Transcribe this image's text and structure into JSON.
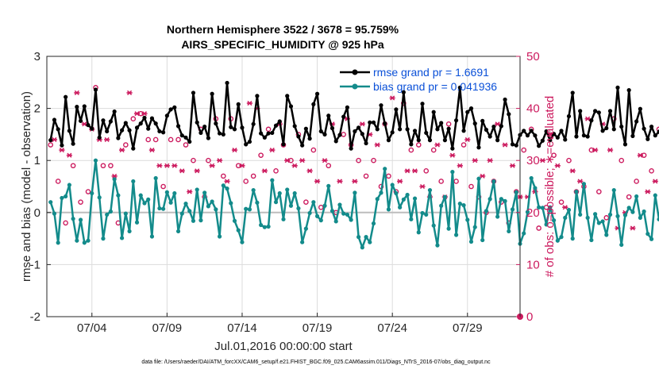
{
  "chart_data": {
    "type": "line",
    "title_line1": "Northern Hemisphere 3522 / 3678 = 95.759%",
    "title_line2": "AIRS_SPECIFIC_HUMIDITY @ 925 hPa",
    "ylabel": "rmse and bias (model - observation)",
    "y2label": "# of obs: o=possible; ∗=evaluated",
    "xlabel": "Jul.01,2016 00:00:00 start",
    "ylim": [
      -2,
      3
    ],
    "y2lim": [
      0,
      50
    ],
    "xlim": [
      0,
      31.5
    ],
    "yticks": [
      "-2",
      "-1",
      "0",
      "1",
      "2",
      "3"
    ],
    "y2ticks": [
      "0",
      "10",
      "20",
      "30",
      "40",
      "50"
    ],
    "xticks": [
      {
        "pos": 3.0,
        "label": "07/04"
      },
      {
        "pos": 8.0,
        "label": "07/09"
      },
      {
        "pos": 13.0,
        "label": "07/14"
      },
      {
        "pos": 18.0,
        "label": "07/19"
      },
      {
        "pos": 23.0,
        "label": "07/24"
      },
      {
        "pos": 28.0,
        "label": "07/29"
      }
    ],
    "legend_rmse": "rmse grand pr = 1.6691",
    "legend_bias": "bias grand pr = 0.041936",
    "series": [
      {
        "name": "rmse",
        "color": "#000000",
        "values": [
          1.39,
          1.78,
          1.6,
          1.29,
          2.22,
          1.57,
          1.32,
          2.03,
          1.76,
          2.04,
          1.68,
          1.61,
          2.36,
          1.44,
          1.77,
          1.56,
          1.75,
          1.94,
          1.43,
          1.58,
          1.72,
          1.58,
          1.23,
          1.63,
          1.71,
          1.82,
          1.61,
          1.81,
          1.71,
          1.56,
          1.54,
          1.86,
          1.98,
          2.02,
          1.66,
          1.48,
          1.44,
          1.36,
          2.3,
          1.73,
          1.53,
          1.65,
          1.43,
          2.28,
          1.71,
          1.52,
          1.5,
          2.49,
          1.64,
          1.6,
          2.08,
          1.63,
          1.31,
          1.36,
          1.7,
          2.24,
          1.52,
          1.44,
          1.52,
          1.53,
          1.67,
          1.75,
          1.31,
          2.24,
          2.04,
          1.66,
          1.46,
          1.29,
          1.61,
          1.42,
          2.08,
          2.28,
          1.56,
          1.5,
          1.86,
          1.62,
          1.37,
          1.49,
          1.84,
          2.02,
          1.23,
          1.56,
          1.63,
          1.51,
          1.33,
          1.73,
          1.73,
          1.6,
          2.06,
          1.71,
          1.39,
          1.54,
          1.98,
          1.6,
          2.31,
          1.6,
          1.31,
          1.57,
          1.39,
          2.09,
          1.53,
          1.39,
          1.93,
          1.6,
          1.72,
          1.39,
          1.61,
          1.23,
          1.77,
          2.4,
          1.57,
          1.93,
          2.0,
          1.71,
          1.25,
          1.76,
          1.59,
          1.46,
          1.65,
          1.39,
          1.66,
          2.17,
          1.89,
          1.31,
          1.29,
          1.49,
          1.57,
          1.48,
          1.57,
          1.48,
          1.28,
          1.38,
          1.56,
          1.39,
          1.51,
          1.44,
          1.57,
          1.4,
          1.85,
          2.3,
          1.46,
          1.95,
          1.48,
          1.46,
          1.77,
          1.95,
          1.92,
          1.57,
          1.62,
          1.95,
          1.6,
          2.4,
          1.65,
          1.31,
          2.35,
          1.47,
          1.75,
          1.99,
          1.61,
          1.41,
          1.65,
          1.48,
          1.55,
          1.76,
          1.77,
          1.58,
          1.62,
          2.13,
          1.37,
          1.32,
          1.54,
          1.69,
          1.36,
          1.92,
          1.54,
          1.98,
          1.41,
          1.82,
          2.02,
          2.05,
          1.89,
          1.78,
          1.96,
          1.44,
          1.83,
          1.39,
          1.5,
          1.67,
          1.57,
          2.24,
          1.39,
          1.38,
          1.8,
          1.73,
          1.61,
          1.53,
          1.56,
          1.91,
          1.94,
          2.06,
          1.74,
          1.92,
          1.56,
          1.79,
          1.65,
          1.68,
          1.35,
          1.67,
          2.03,
          1.83,
          1.63,
          1.83,
          1.45,
          1.3,
          1.83,
          1.92,
          1.73,
          1.6,
          1.56,
          1.7,
          1.92,
          1.72,
          1.7,
          1.53,
          1.46,
          1.67,
          1.59,
          1.77,
          1.77,
          1.56,
          1.81,
          1.55,
          1.81,
          1.53,
          1.9,
          2.05,
          1.85,
          1.99,
          1.61,
          1.66,
          1.5,
          1.63,
          1.8,
          1.59,
          2.08,
          1.56,
          1.78,
          1.32,
          1.8,
          1.63,
          1.55,
          1.77,
          1.62,
          1.5,
          1.45,
          1.35,
          1.7,
          1.66,
          1.37,
          1.57,
          1.66,
          1.55,
          1.56,
          1.92,
          1.63,
          1.52,
          1.76,
          1.69,
          1.57,
          1.38
        ]
      },
      {
        "name": "bias",
        "color": "#138b8b",
        "values": [
          0.2,
          -0.02,
          -0.58,
          0.28,
          0.31,
          0.53,
          -0.12,
          -0.54,
          -0.14,
          -0.58,
          -0.54,
          0.37,
          1.0,
          0.29,
          -0.5,
          -0.04,
          0.02,
          0.64,
          0.33,
          -0.49,
          -0.02,
          -0.36,
          0.6,
          -0.19,
          0.33,
          0.18,
          0.25,
          -0.46,
          0.66,
          0.08,
          0.07,
          0.39,
          0.19,
          0.37,
          -0.36,
          -0.02,
          0.17,
          0.03,
          -0.16,
          0.44,
          -0.15,
          0.38,
          0.12,
          0.21,
          0.06,
          -0.46,
          0.52,
          0.46,
          0.18,
          -0.16,
          -0.34,
          -0.57,
          0.07,
          0.06,
          0.43,
          0.19,
          -0.24,
          -0.28,
          -0.27,
          0.62,
          0.2,
          0.37,
          -0.13,
          0.44,
          0.13,
          0.37,
          0.08,
          -0.57,
          -0.31,
          -0.01,
          0.2,
          -0.07,
          -0.15,
          0.13,
          0.51,
          0.03,
          -0.17,
          0.15,
          -0.02,
          -0.04,
          -0.14,
          0.38,
          -0.47,
          -0.67,
          -0.47,
          -0.57,
          -0.21,
          0.26,
          0.38,
          0.84,
          0.06,
          0.53,
          0.37,
          0.1,
          0.25,
          0.34,
          -0.13,
          0.27,
          -0.38,
          -0.01,
          -0.04,
          0.43,
          -0.25,
          -0.63,
          0.13,
          0.3,
          -0.31,
          0.78,
          -0.43,
          0.17,
          0.14,
          -0.14,
          -0.56,
          -0.28,
          0.65,
          -0.53,
          0.03,
          0.26,
          0.6,
          -0.08,
          0.26,
          0.22,
          -0.36,
          0.06,
          0.39,
          -0.6,
          -0.4,
          0.01,
          0.66,
          0.47,
          0.1,
          0.09,
          -0.23,
          0.1,
          -0.15,
          -0.54,
          -0.47,
          -0.1,
          0.05,
          -0.5,
          0.4,
          -0.04,
          0.55,
          -0.1,
          -0.53,
          -0.03,
          -0.2,
          -0.17,
          -0.43,
          -0.04,
          0.43,
          -0.07,
          -0.62,
          -0.05,
          0.09,
          0.01,
          0.31,
          -0.1,
          0.02,
          -0.41,
          -0.51,
          0.33,
          -0.13,
          0.4,
          -0.19,
          0.58,
          0.02,
          -0.7,
          -0.27,
          -0.29,
          -0.03,
          0.39,
          0.07,
          -0.37,
          0.28,
          0.26,
          0.63,
          -0.4,
          -0.38,
          0.5,
          -0.31,
          0.08,
          -0.28,
          0.57,
          -0.45,
          0.3,
          -0.29,
          0.2,
          0.4,
          -0.16,
          0.1,
          0.21,
          0.05,
          0.37,
          0.81,
          -0.07,
          0.31,
          -0.13,
          0.1,
          0.57,
          0.47,
          0.32,
          0.63,
          0.47,
          0.33,
          0.32,
          0.14,
          0.15,
          0.59,
          0.31,
          0.33,
          0.15,
          0.16,
          0.27,
          0.08,
          0.4,
          0.29,
          0.09,
          0.05,
          0.34,
          0.04,
          0.27,
          0.09,
          -0.05,
          0.1,
          0.31,
          0.42,
          0.54,
          0.48,
          0.12,
          0.02,
          0.59,
          -0.15,
          0.23,
          0.09,
          0.24,
          -0.01,
          0.16,
          -0.26,
          0.11,
          0.25,
          0.0,
          0.43,
          -0.17,
          0.07,
          0.2,
          0.04,
          0.06,
          -0.07,
          0.34,
          0.27,
          0.47,
          0.24,
          0.21,
          0.15,
          -0.21,
          0.05,
          0.63,
          0.23,
          0.71,
          -0.2,
          0.1,
          -0.35,
          -0.11,
          0.18,
          -0.27,
          0.46,
          0.07,
          0.14,
          0.57,
          0.65,
          -0.29,
          0.54
        ]
      },
      {
        "name": "possible",
        "color": "#cc1a5e",
        "marker": "circle",
        "values": [
          33,
          35,
          26,
          32,
          18,
          32,
          29,
          44,
          22,
          38,
          24,
          36,
          44,
          34,
          29,
          34,
          29,
          27,
          18,
          32,
          33,
          44,
          38,
          40,
          39,
          40,
          34,
          32,
          34,
          29,
          25,
          30,
          34,
          29,
          34,
          29,
          33,
          24,
          30,
          29,
          36,
          24,
          30,
          29,
          38,
          30,
          27,
          27,
          38,
          32,
          29,
          30,
          26,
          41,
          27,
          40,
          31,
          28,
          36,
          33,
          28,
          38,
          33,
          30,
          30,
          29,
          35,
          30,
          22,
          29,
          32,
          27,
          21,
          30,
          29,
          38,
          20,
          26,
          35,
          39,
          33,
          27,
          30,
          37,
          27,
          35,
          30,
          34,
          25,
          38,
          27,
          42,
          24,
          26,
          41,
          28,
          32,
          28,
          33,
          25,
          28,
          24,
          32,
          33,
          26,
          23,
          37,
          32,
          26,
          30,
          33,
          35,
          25,
          31,
          23,
          27,
          20,
          30,
          26,
          37,
          22,
          33,
          18,
          29,
          24,
          23,
          32,
          24,
          36,
          25,
          17,
          30,
          21,
          35,
          31,
          30,
          22,
          21,
          30,
          28,
          24,
          27,
          25,
          38,
          32,
          33,
          24,
          38,
          19,
          33,
          38,
          17,
          30,
          21,
          23,
          17,
          26,
          32,
          31,
          24,
          28,
          27,
          36,
          31,
          29,
          30,
          22,
          21,
          40,
          33,
          30,
          25,
          33,
          28,
          36,
          41,
          33,
          33,
          30,
          30,
          33,
          33,
          32,
          28,
          33,
          38,
          24,
          30,
          28,
          32,
          38,
          36,
          33,
          24,
          30,
          17,
          25,
          25,
          24,
          30,
          27,
          31,
          32,
          21,
          37,
          27,
          40,
          30,
          33,
          35,
          20,
          32,
          24,
          26,
          19,
          29,
          22,
          33,
          36,
          25,
          31,
          22,
          32,
          29,
          27,
          39,
          30,
          31,
          38,
          30,
          29,
          24,
          35,
          31,
          25,
          28,
          29,
          24,
          25,
          33,
          37,
          19,
          34,
          28,
          18,
          32,
          26,
          32,
          31,
          34,
          30,
          28,
          24,
          33,
          37,
          30,
          37,
          35,
          37,
          38,
          32,
          38,
          33,
          35,
          33,
          39,
          31,
          37,
          34,
          36,
          32,
          23,
          31,
          36,
          35,
          30,
          33,
          25,
          22,
          37,
          31,
          20,
          24,
          37,
          31,
          36,
          32,
          32,
          31,
          36,
          32,
          35,
          33,
          22
        ]
      },
      {
        "name": "evaluated",
        "color": "#cc1a5e",
        "marker": "asterisk",
        "values": [
          31,
          34,
          25,
          32,
          17,
          31,
          29,
          43,
          21,
          37,
          23,
          36,
          43,
          34,
          29,
          34,
          29,
          27,
          18,
          32,
          32,
          43,
          37,
          39,
          38,
          39,
          34,
          32,
          33,
          29,
          24,
          29,
          34,
          29,
          33,
          28,
          33,
          24,
          30,
          28,
          36,
          23,
          30,
          29,
          37,
          30,
          26,
          26,
          37,
          32,
          28,
          29,
          26,
          41,
          26,
          40,
          30,
          28,
          35,
          32,
          27,
          37,
          33,
          30,
          30,
          29,
          34,
          30,
          22,
          28,
          31,
          26,
          21,
          30,
          28,
          37,
          19,
          26,
          34,
          38,
          33,
          26,
          30,
          37,
          26,
          35,
          29,
          33,
          25,
          37,
          27,
          42,
          24,
          26,
          40,
          28,
          32,
          28,
          33,
          25,
          28,
          23,
          32,
          33,
          26,
          23,
          36,
          31,
          25,
          29,
          32,
          34,
          24,
          30,
          22,
          27,
          19,
          30,
          25,
          37,
          22,
          33,
          18,
          29,
          24,
          23,
          32,
          23,
          36,
          24,
          17,
          30,
          20,
          35,
          31,
          29,
          21,
          21,
          29,
          28,
          23,
          26,
          25,
          38,
          32,
          32,
          24,
          37,
          19,
          32,
          38,
          17,
          29,
          20,
          23,
          17,
          25,
          31,
          30,
          24,
          28,
          26,
          35,
          31,
          28,
          30,
          21,
          21,
          40,
          32,
          29,
          24,
          32,
          28,
          36,
          40,
          32,
          33,
          29,
          30,
          33,
          33,
          31,
          28,
          32,
          38,
          23,
          30,
          28,
          32,
          38,
          36,
          33,
          24,
          30,
          17,
          25,
          24,
          23,
          30,
          27,
          31,
          31,
          21,
          36,
          26,
          39,
          30,
          33,
          35,
          20,
          32,
          23,
          25,
          19,
          29,
          21,
          33,
          36,
          25,
          30,
          21,
          32,
          28,
          26,
          39,
          30,
          31,
          37,
          29,
          29,
          24,
          35,
          30,
          25,
          27,
          29,
          24,
          25,
          32,
          37,
          19,
          34,
          27,
          17,
          32,
          26,
          31,
          31,
          34,
          30,
          27,
          23,
          33,
          37,
          30,
          37,
          34,
          36,
          38,
          31,
          37,
          32,
          35,
          33,
          38,
          31,
          37,
          34,
          35,
          31,
          22,
          31,
          36,
          35,
          30,
          32,
          24,
          22,
          36,
          31,
          19,
          23,
          36,
          31,
          35,
          31,
          31,
          31,
          35,
          31,
          34,
          33,
          22
        ]
      }
    ],
    "right_edge_marker": {
      "label": "0",
      "value": 0
    }
  },
  "footer": {
    "data_file": "data file: /Users/raeder/DAI/ATM_forcXX/CAM6_setup/f.e21.FHIST_BGC.f09_025.CAM6assim.011/Diags_NTrS_2016-07/obs_diag_output.nc"
  }
}
